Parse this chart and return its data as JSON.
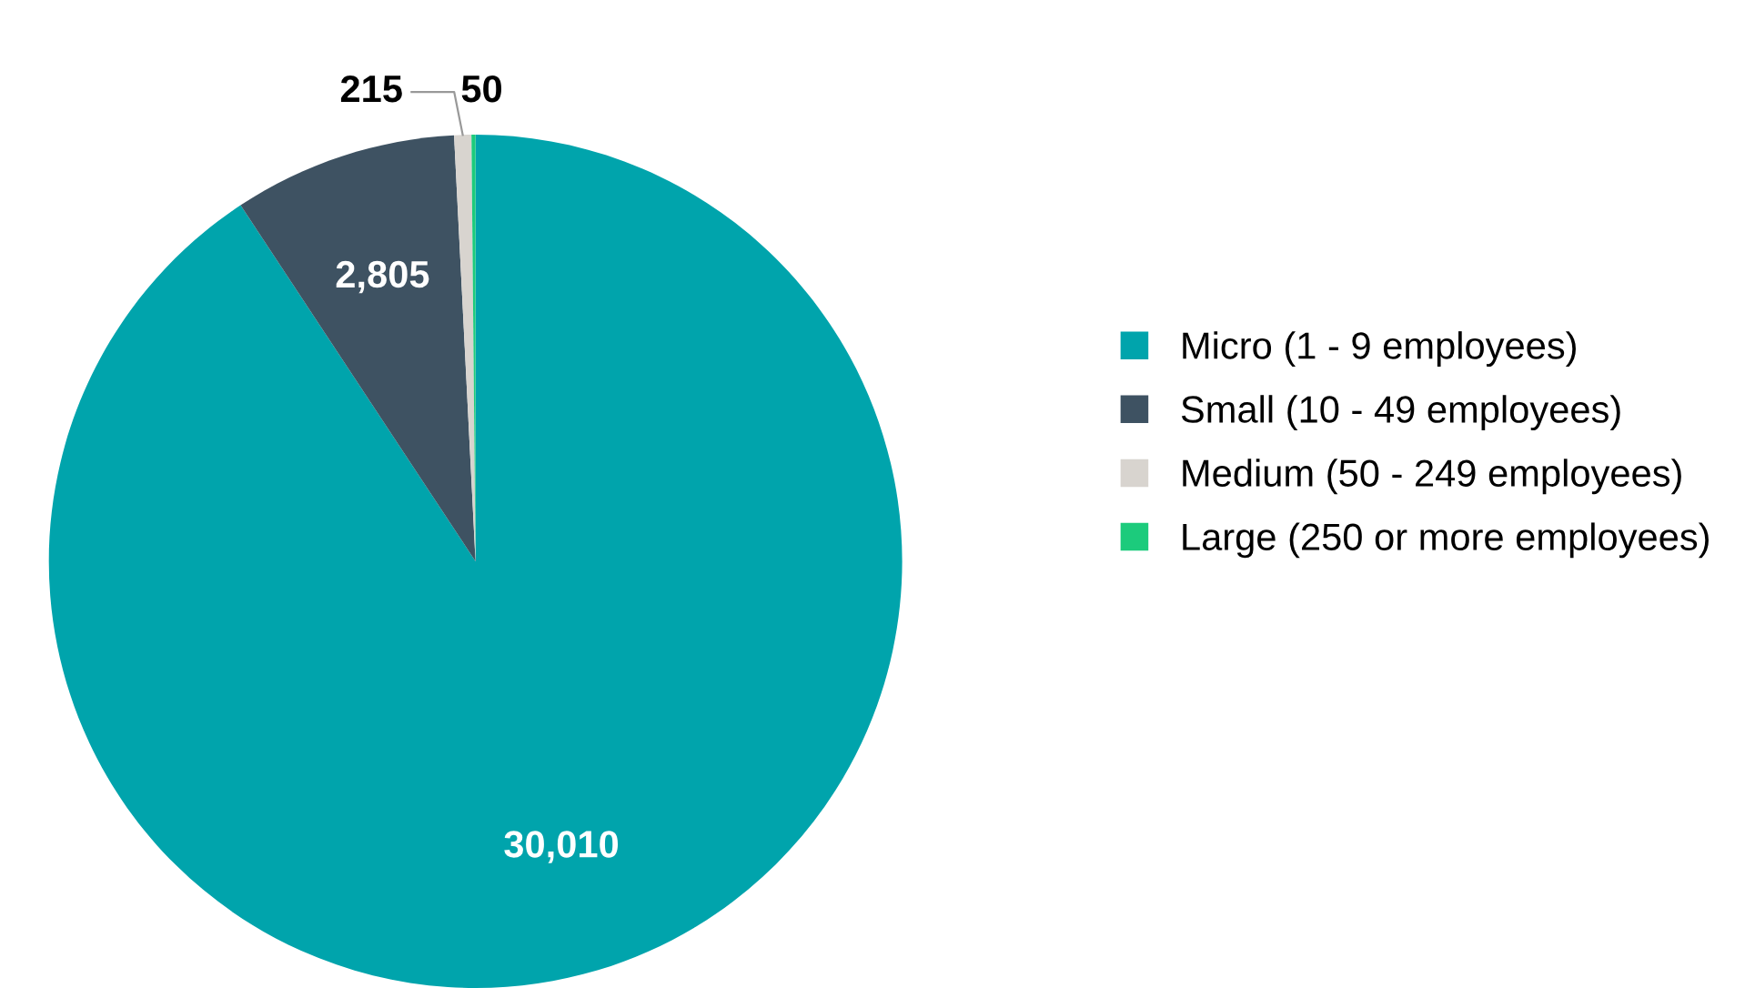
{
  "chart_data": {
    "type": "pie",
    "categories": [
      "Micro (1 - 9 employees)",
      "Small (10 - 49 employees)",
      "Medium (50 - 249 employees)",
      "Large (250 or more employees)"
    ],
    "values": [
      30010,
      2805,
      215,
      50
    ],
    "colors": [
      "#00a4ac",
      "#3e5262",
      "#d8d4cf",
      "#1ccb7c"
    ],
    "value_labels": [
      "30,010",
      "2,805",
      "215",
      "50"
    ],
    "legend": "right"
  }
}
